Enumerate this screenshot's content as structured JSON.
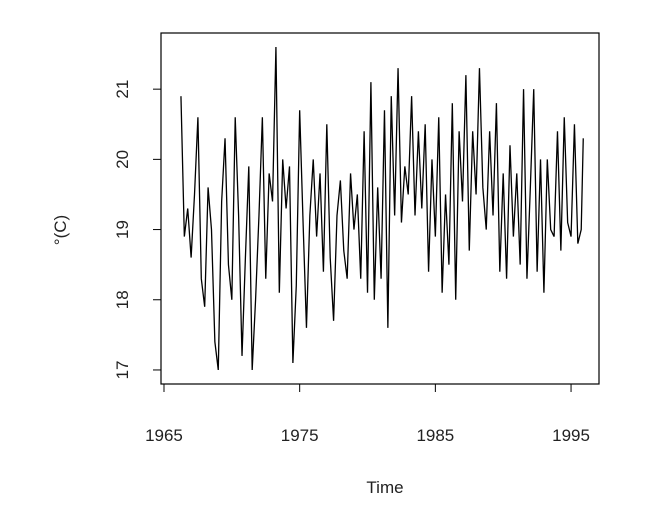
{
  "chart_data": {
    "type": "line",
    "x_label": "Time",
    "y_label": "°(C)",
    "x": [
      1966.25,
      1966.5,
      1966.75,
      1967,
      1967.25,
      1967.5,
      1967.75,
      1968,
      1968.25,
      1968.5,
      1968.75,
      1969,
      1969.25,
      1969.5,
      1969.75,
      1970,
      1970.25,
      1970.5,
      1970.75,
      1971,
      1971.25,
      1971.5,
      1971.75,
      1972,
      1972.25,
      1972.5,
      1972.75,
      1973,
      1973.25,
      1973.5,
      1973.75,
      1974,
      1974.25,
      1974.5,
      1974.75,
      1975,
      1975.25,
      1975.5,
      1975.75,
      1976,
      1976.25,
      1976.5,
      1976.75,
      1977,
      1977.25,
      1977.5,
      1977.75,
      1978,
      1978.25,
      1978.5,
      1978.75,
      1979,
      1979.25,
      1979.5,
      1979.75,
      1980,
      1980.25,
      1980.5,
      1980.75,
      1981,
      1981.25,
      1981.5,
      1981.75,
      1982,
      1982.25,
      1982.5,
      1982.75,
      1983,
      1983.25,
      1983.5,
      1983.75,
      1984,
      1984.25,
      1984.5,
      1984.75,
      1985,
      1985.25,
      1985.5,
      1985.75,
      1986,
      1986.25,
      1986.5,
      1986.75,
      1987,
      1987.25,
      1987.5,
      1987.75,
      1988,
      1988.25,
      1988.5,
      1988.75,
      1989,
      1989.25,
      1989.5,
      1989.75,
      1990,
      1990.25,
      1990.5,
      1990.75,
      1991,
      1991.25,
      1991.5,
      1991.75,
      1992,
      1992.25,
      1992.5,
      1992.75,
      1993,
      1993.25,
      1993.5,
      1993.75,
      1994,
      1994.25,
      1994.5,
      1994.75,
      1995,
      1995.25,
      1995.5,
      1995.75,
      1995.9
    ],
    "series": [
      {
        "color": "#000000",
        "values": [
          20.9,
          18.9,
          19.3,
          18.6,
          19.5,
          20.6,
          18.3,
          17.9,
          19.6,
          19.0,
          17.4,
          17.0,
          19.4,
          20.3,
          18.5,
          18.0,
          20.6,
          19.2,
          17.2,
          18.6,
          19.9,
          17.0,
          18.0,
          19.2,
          20.6,
          18.3,
          19.8,
          19.4,
          21.6,
          18.1,
          20.0,
          19.3,
          19.9,
          17.1,
          18.2,
          20.7,
          19.1,
          17.6,
          19.2,
          20.0,
          18.9,
          19.8,
          18.4,
          20.5,
          18.6,
          17.7,
          19.2,
          19.7,
          18.7,
          18.3,
          19.8,
          19.0,
          19.5,
          18.3,
          20.4,
          18.1,
          21.1,
          18.0,
          19.6,
          18.3,
          20.7,
          17.6,
          20.9,
          19.2,
          21.3,
          19.1,
          19.9,
          19.5,
          20.9,
          19.2,
          20.4,
          19.3,
          20.5,
          18.4,
          20.0,
          18.9,
          20.6,
          18.1,
          19.5,
          18.5,
          20.8,
          18.0,
          20.4,
          19.4,
          21.2,
          18.7,
          20.4,
          19.5,
          21.3,
          19.6,
          19.0,
          20.4,
          19.2,
          20.8,
          18.4,
          19.8,
          18.3,
          20.2,
          18.9,
          19.8,
          18.5,
          21.0,
          18.3,
          19.6,
          21.0,
          18.4,
          20.0,
          18.1,
          20.0,
          19.0,
          18.9,
          20.4,
          18.7,
          20.6,
          19.1,
          18.9,
          20.5,
          18.8,
          19.0,
          20.3
        ]
      }
    ],
    "xlim": [
      1964.78,
      1997.06
    ],
    "xticks": [
      1965,
      1975,
      1985,
      1995
    ],
    "ylim": [
      16.8,
      21.8
    ],
    "yticks": [
      17,
      18,
      19,
      20,
      21
    ]
  }
}
